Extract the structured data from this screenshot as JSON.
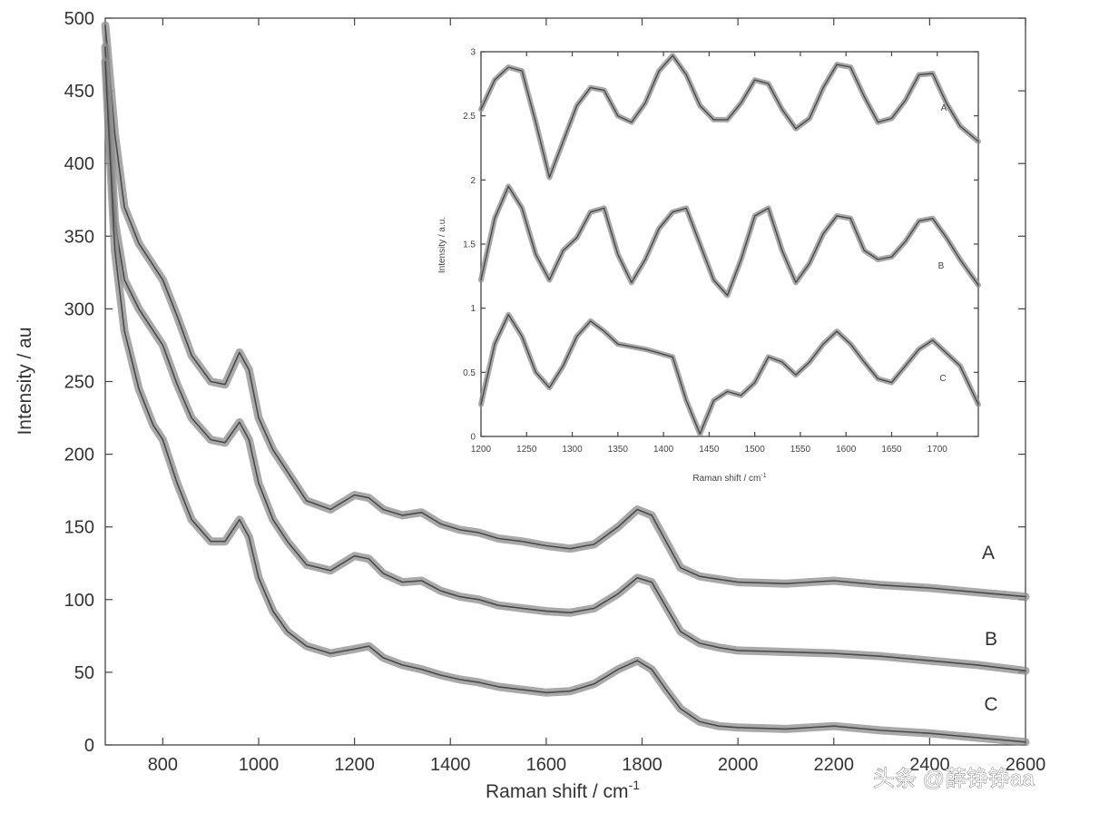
{
  "chart_data": [
    {
      "type": "line",
      "title": "",
      "xlabel": "Raman shift / cm",
      "xlabel_superscript": "-1",
      "ylabel": "Intensity / au",
      "xlim": [
        680,
        2600
      ],
      "ylim": [
        0,
        500
      ],
      "xticks": [
        800,
        1000,
        1200,
        1400,
        1600,
        1800,
        2000,
        2200,
        2400,
        2600
      ],
      "xtick_labels": [
        "800",
        "1000",
        "1200",
        "1400",
        "1600",
        "1800",
        "2000",
        "2200",
        "2400",
        "2600"
      ],
      "yticks": [
        0,
        50,
        100,
        150,
        200,
        250,
        300,
        350,
        400,
        450,
        500
      ],
      "ytick_labels": [
        "0",
        "50",
        "100",
        "150",
        "200",
        "250",
        "300",
        "350",
        "400",
        "450",
        "500"
      ],
      "series": [
        {
          "name": "A",
          "x": [
            680,
            700,
            720,
            750,
            780,
            800,
            830,
            860,
            900,
            930,
            960,
            980,
            1000,
            1030,
            1060,
            1100,
            1150,
            1200,
            1230,
            1260,
            1300,
            1340,
            1380,
            1420,
            1460,
            1500,
            1550,
            1600,
            1650,
            1700,
            1750,
            1790,
            1820,
            1850,
            1880,
            1920,
            1960,
            2000,
            2100,
            2200,
            2300,
            2400,
            2500,
            2600
          ],
          "y": [
            495,
            420,
            370,
            345,
            330,
            320,
            295,
            268,
            250,
            248,
            270,
            258,
            225,
            203,
            188,
            168,
            162,
            172,
            170,
            162,
            158,
            160,
            152,
            148,
            146,
            142,
            140,
            137,
            135,
            138,
            150,
            162,
            158,
            140,
            122,
            116,
            114,
            112,
            111,
            113,
            110,
            108,
            105,
            102
          ]
        },
        {
          "name": "B",
          "x": [
            680,
            700,
            720,
            750,
            780,
            800,
            830,
            860,
            900,
            930,
            960,
            980,
            1000,
            1030,
            1060,
            1100,
            1150,
            1200,
            1230,
            1260,
            1300,
            1340,
            1380,
            1420,
            1460,
            1500,
            1550,
            1600,
            1650,
            1700,
            1750,
            1790,
            1820,
            1850,
            1880,
            1920,
            1960,
            2000,
            2100,
            2200,
            2300,
            2400,
            2500,
            2600
          ],
          "y": [
            480,
            360,
            320,
            300,
            285,
            275,
            248,
            225,
            210,
            208,
            222,
            210,
            180,
            155,
            140,
            124,
            120,
            130,
            128,
            118,
            112,
            113,
            106,
            102,
            100,
            96,
            94,
            92,
            91,
            94,
            104,
            115,
            112,
            95,
            78,
            70,
            67,
            65,
            64,
            63,
            61,
            58,
            55,
            51
          ]
        },
        {
          "name": "C",
          "x": [
            680,
            700,
            720,
            750,
            780,
            800,
            830,
            860,
            900,
            930,
            960,
            980,
            1000,
            1030,
            1060,
            1100,
            1150,
            1200,
            1230,
            1260,
            1300,
            1340,
            1380,
            1420,
            1460,
            1500,
            1550,
            1600,
            1650,
            1700,
            1750,
            1790,
            1820,
            1850,
            1880,
            1920,
            1960,
            2000,
            2100,
            2200,
            2300,
            2400,
            2500,
            2600
          ],
          "y": [
            470,
            340,
            285,
            245,
            220,
            210,
            180,
            155,
            140,
            140,
            155,
            143,
            115,
            92,
            78,
            68,
            63,
            66,
            68,
            60,
            55,
            52,
            48,
            45,
            43,
            40,
            38,
            36,
            37,
            42,
            52,
            58,
            52,
            38,
            25,
            16,
            13,
            12,
            11,
            13,
            10,
            8,
            5,
            2
          ]
        }
      ],
      "series_labels": [
        "A",
        "B",
        "C"
      ]
    },
    {
      "type": "line",
      "title": "",
      "xlabel": "Raman shift / cm",
      "xlabel_superscript": "-1",
      "ylabel": "Intensity / a.u.",
      "xlim": [
        1200,
        1745
      ],
      "ylim": [
        0,
        3
      ],
      "xticks": [
        1200,
        1250,
        1300,
        1350,
        1400,
        1450,
        1500,
        1550,
        1600,
        1650,
        1700
      ],
      "xtick_labels": [
        "1200",
        "1250",
        "1300",
        "1350",
        "1400",
        "1450",
        "1500",
        "1550",
        "1600",
        "1650",
        "1700"
      ],
      "yticks": [
        0,
        0.5,
        1,
        1.5,
        2,
        2.5,
        3
      ],
      "ytick_labels": [
        "0",
        "0.5",
        "1",
        "1.5",
        "2",
        "2.5",
        "3"
      ],
      "series": [
        {
          "name": "A",
          "x": [
            1200,
            1215,
            1230,
            1245,
            1260,
            1275,
            1290,
            1305,
            1320,
            1335,
            1350,
            1365,
            1380,
            1395,
            1410,
            1425,
            1440,
            1455,
            1470,
            1485,
            1500,
            1515,
            1530,
            1545,
            1560,
            1575,
            1590,
            1605,
            1620,
            1635,
            1650,
            1665,
            1680,
            1695,
            1710,
            1725,
            1745
          ],
          "y": [
            2.55,
            2.78,
            2.88,
            2.85,
            2.45,
            2.02,
            2.3,
            2.58,
            2.72,
            2.7,
            2.5,
            2.45,
            2.6,
            2.85,
            2.97,
            2.82,
            2.58,
            2.47,
            2.47,
            2.6,
            2.78,
            2.75,
            2.55,
            2.4,
            2.48,
            2.72,
            2.9,
            2.88,
            2.65,
            2.45,
            2.48,
            2.62,
            2.82,
            2.83,
            2.6,
            2.42,
            2.3
          ]
        },
        {
          "name": "B",
          "x": [
            1200,
            1215,
            1230,
            1245,
            1260,
            1275,
            1290,
            1305,
            1320,
            1335,
            1350,
            1365,
            1380,
            1395,
            1410,
            1425,
            1440,
            1455,
            1470,
            1485,
            1500,
            1515,
            1530,
            1545,
            1560,
            1575,
            1590,
            1605,
            1620,
            1635,
            1650,
            1665,
            1680,
            1695,
            1710,
            1725,
            1745
          ],
          "y": [
            1.22,
            1.7,
            1.95,
            1.78,
            1.42,
            1.22,
            1.45,
            1.55,
            1.75,
            1.78,
            1.42,
            1.2,
            1.38,
            1.62,
            1.75,
            1.78,
            1.5,
            1.22,
            1.1,
            1.38,
            1.72,
            1.78,
            1.45,
            1.2,
            1.35,
            1.58,
            1.72,
            1.7,
            1.45,
            1.38,
            1.4,
            1.52,
            1.68,
            1.7,
            1.55,
            1.38,
            1.18
          ]
        },
        {
          "name": "C",
          "x": [
            1200,
            1215,
            1230,
            1245,
            1260,
            1275,
            1290,
            1305,
            1320,
            1335,
            1350,
            1365,
            1380,
            1395,
            1410,
            1425,
            1440,
            1455,
            1470,
            1485,
            1500,
            1515,
            1530,
            1545,
            1560,
            1575,
            1590,
            1605,
            1620,
            1635,
            1650,
            1665,
            1680,
            1695,
            1710,
            1725,
            1745
          ],
          "y": [
            0.25,
            0.72,
            0.95,
            0.78,
            0.5,
            0.38,
            0.55,
            0.78,
            0.9,
            0.82,
            0.72,
            0.7,
            0.68,
            0.65,
            0.62,
            0.28,
            0.02,
            0.28,
            0.35,
            0.32,
            0.42,
            0.62,
            0.58,
            0.48,
            0.58,
            0.72,
            0.82,
            0.72,
            0.58,
            0.45,
            0.42,
            0.55,
            0.68,
            0.75,
            0.65,
            0.55,
            0.25
          ]
        }
      ],
      "series_labels": [
        "A",
        "B",
        "C"
      ]
    }
  ],
  "watermark": "头条 @薛铮铮aa",
  "colors": {
    "line": "#4a4a4a",
    "band": "#8c8c8c",
    "axis": "#444444"
  }
}
